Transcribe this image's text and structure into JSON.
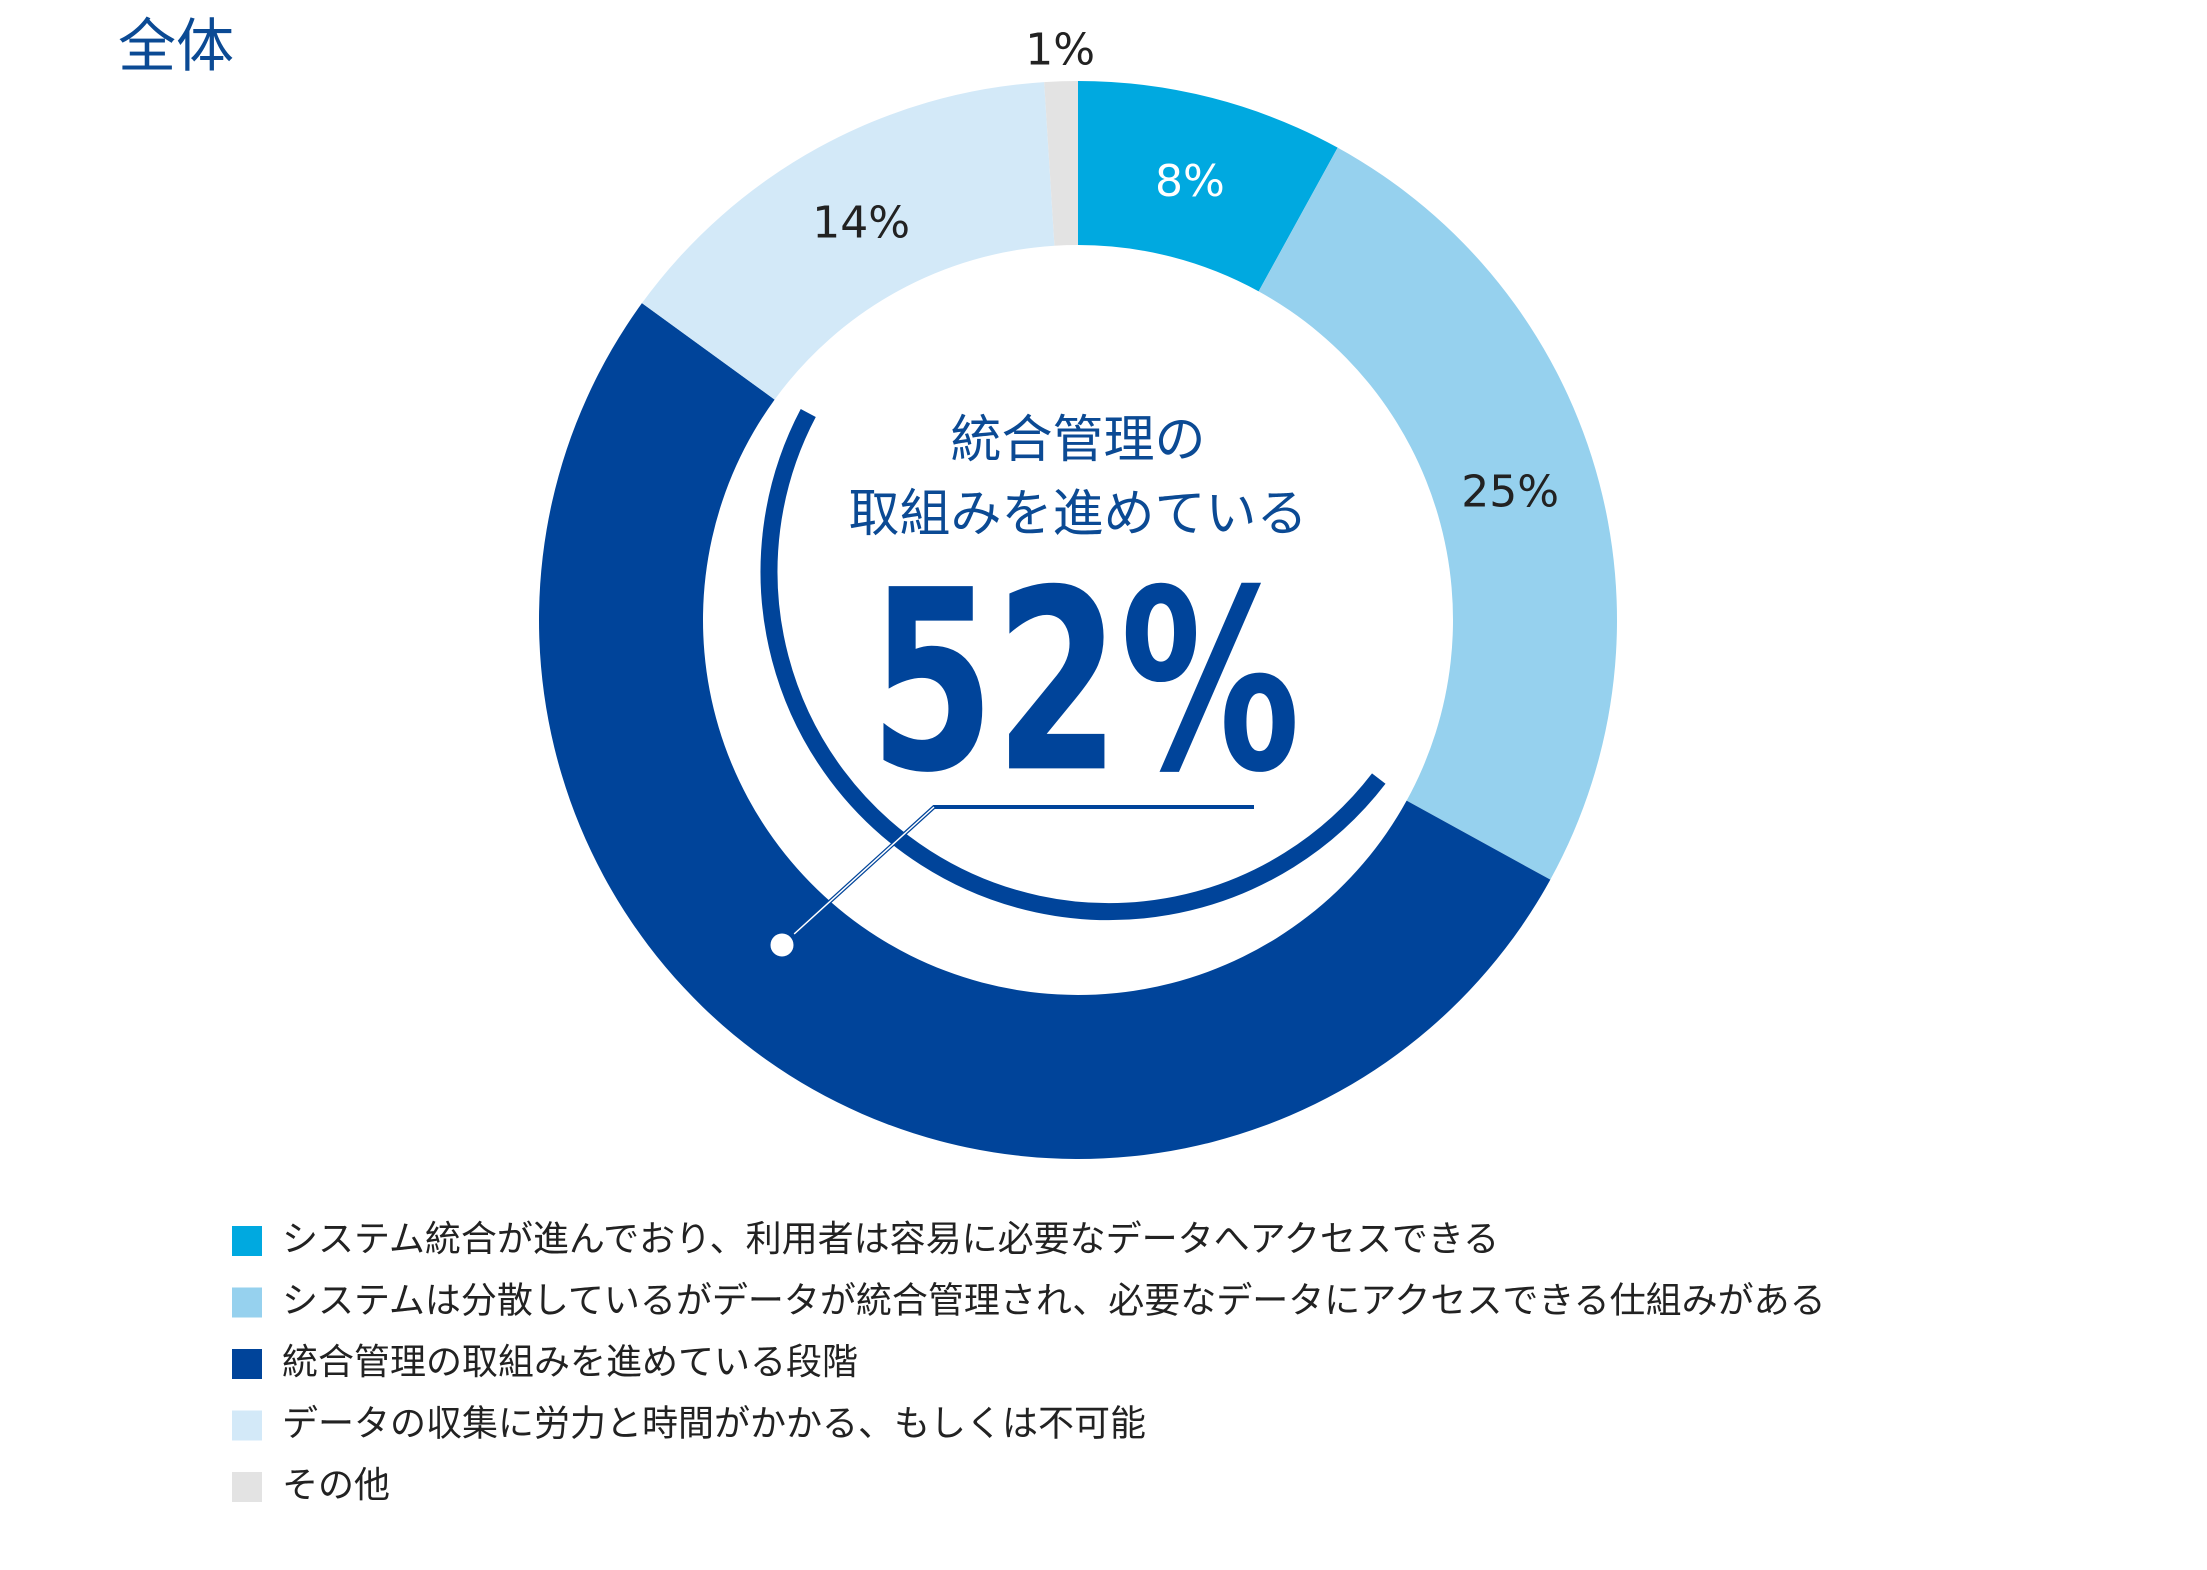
{
  "chart_data": {
    "type": "donut",
    "title": "全体",
    "categories": [
      "システム統合が進んでおり、利用者は容易に必要なデータへアクセスできる",
      "システムは分散しているがデータが統合管理され、必要なデータにアクセスできる仕組みがある",
      "統合管理の取組みを進めている段階",
      "データの収集に労力と時間がかかる、もしくは不可能",
      "その他"
    ],
    "values": [
      8,
      25,
      52,
      14,
      1
    ],
    "value_labels": [
      "8%",
      "25%",
      "52%",
      "14%",
      "1%"
    ],
    "colors": [
      "#00a9e0",
      "#96d1ee",
      "#00449a",
      "#d3e9f8",
      "#e3e3e3"
    ],
    "center_text": [
      "統合管理の",
      "取組みを進めている"
    ]
  }
}
